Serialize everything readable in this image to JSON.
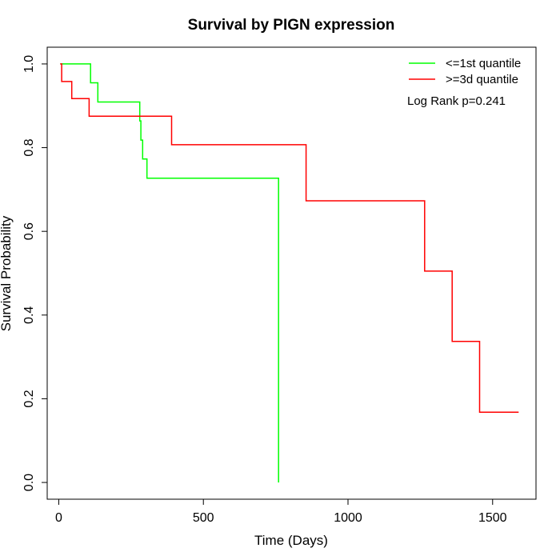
{
  "chart_data": {
    "type": "line",
    "step": true,
    "title": "Survival by PIGN expression",
    "xlabel": "Time (Days)",
    "ylabel": "Survival Probability",
    "xlim": [
      -40,
      1650
    ],
    "ylim": [
      -0.04,
      1.04
    ],
    "xticks": [
      0,
      500,
      1000,
      1500
    ],
    "yticks": [
      0.0,
      0.2,
      0.4,
      0.6,
      0.8,
      1.0
    ],
    "ytick_labels": [
      "0.0",
      "0.2",
      "0.4",
      "0.6",
      "0.8",
      "1.0"
    ],
    "grid": false,
    "legend_position": "top-right",
    "annotation": "Log Rank p=0.241",
    "series": [
      {
        "name": "<=1st quantile",
        "color": "#00ff00",
        "x": [
          5,
          110,
          110,
          135,
          135,
          280,
          280,
          284,
          284,
          290,
          290,
          305,
          305,
          350,
          350,
          760,
          760
        ],
        "y": [
          1.0,
          1.0,
          0.955,
          0.955,
          0.909,
          0.909,
          0.864,
          0.864,
          0.818,
          0.818,
          0.773,
          0.773,
          0.727,
          0.727,
          0.727,
          0.727,
          0.0
        ]
      },
      {
        "name": ">=3d quantile",
        "color": "#ff0000",
        "x": [
          5,
          10,
          10,
          45,
          45,
          105,
          105,
          390,
          390,
          855,
          855,
          1265,
          1265,
          1360,
          1360,
          1455,
          1455,
          1590
        ],
        "y": [
          1.0,
          1.0,
          0.958,
          0.958,
          0.917,
          0.917,
          0.875,
          0.875,
          0.807,
          0.807,
          0.673,
          0.673,
          0.505,
          0.505,
          0.337,
          0.337,
          0.168,
          0.168
        ]
      }
    ]
  }
}
